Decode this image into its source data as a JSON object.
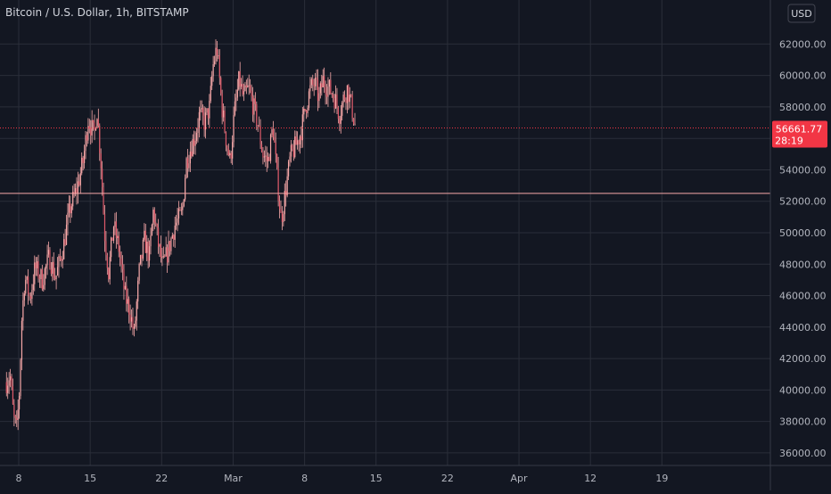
{
  "header": {
    "title": "Bitcoin / U.S. Dollar, 1h, BITSTAMP"
  },
  "currency_badge": "USD",
  "price_badge": {
    "price": "56661.77",
    "countdown": "28:19"
  },
  "colors": {
    "background": "#131722",
    "grid": "#2a2e39",
    "candles": "#f7a8a8",
    "current_price": "#f23645",
    "support_line": "#f7a8a8",
    "axis_text": "#b2b5be"
  },
  "chart_data": {
    "type": "candlestick",
    "title": "Bitcoin / U.S. Dollar, 1h, BITSTAMP",
    "x_ticks": [
      "8",
      "15",
      "22",
      "Mar",
      "8",
      "15",
      "22",
      "Apr",
      "12",
      "19"
    ],
    "y_ticks": [
      "36000.00",
      "38000.00",
      "40000.00",
      "42000.00",
      "44000.00",
      "46000.00",
      "48000.00",
      "50000.00",
      "52000.00",
      "54000.00",
      "56000.00",
      "58000.00",
      "60000.00",
      "62000.00"
    ],
    "ylim": [
      35200,
      64800
    ],
    "grid": true,
    "current_price": 56661.77,
    "horizontal_line": 52500,
    "price_path": [
      [
        0,
        40500
      ],
      [
        0.35,
        41000
      ],
      [
        0.7,
        38200
      ],
      [
        1.0,
        37500
      ],
      [
        1.25,
        39800
      ],
      [
        1.5,
        44500
      ],
      [
        1.8,
        47200
      ],
      [
        2.3,
        45800
      ],
      [
        2.8,
        47800
      ],
      [
        3.5,
        47000
      ],
      [
        4.2,
        48500
      ],
      [
        4.8,
        47100
      ],
      [
        5.6,
        49200
      ],
      [
        6.2,
        51500
      ],
      [
        6.9,
        52800
      ],
      [
        7.5,
        54500
      ],
      [
        8.0,
        57200
      ],
      [
        8.6,
        56200
      ],
      [
        8.85,
        58000
      ],
      [
        9.3,
        54000
      ],
      [
        9.6,
        50000
      ],
      [
        10.0,
        47500
      ],
      [
        10.5,
        50500
      ],
      [
        11.0,
        49000
      ],
      [
        11.6,
        46000
      ],
      [
        12.1,
        45000
      ],
      [
        12.5,
        43500
      ],
      [
        13.0,
        47500
      ],
      [
        13.5,
        49500
      ],
      [
        14.0,
        48500
      ],
      [
        14.4,
        51500
      ],
      [
        14.8,
        49500
      ],
      [
        15.3,
        47800
      ],
      [
        15.9,
        49000
      ],
      [
        16.5,
        50500
      ],
      [
        17.2,
        51200
      ],
      [
        17.6,
        54500
      ],
      [
        18.1,
        55500
      ],
      [
        18.5,
        56200
      ],
      [
        18.9,
        57500
      ],
      [
        19.4,
        57000
      ],
      [
        19.9,
        58000
      ],
      [
        20.2,
        60500
      ],
      [
        20.6,
        61800
      ],
      [
        21.1,
        58000
      ],
      [
        21.5,
        56000
      ],
      [
        21.9,
        54500
      ],
      [
        22.3,
        57500
      ],
      [
        22.8,
        59800
      ],
      [
        23.2,
        58500
      ],
      [
        23.7,
        59200
      ],
      [
        24.2,
        58000
      ],
      [
        24.6,
        57000
      ],
      [
        25.1,
        55000
      ],
      [
        25.6,
        54500
      ],
      [
        26.1,
        56800
      ],
      [
        26.5,
        53500
      ],
      [
        26.9,
        50800
      ],
      [
        27.3,
        52500
      ],
      [
        27.8,
        54800
      ],
      [
        28.3,
        55500
      ],
      [
        28.8,
        56300
      ],
      [
        29.3,
        58000
      ],
      [
        29.8,
        59200
      ],
      [
        30.2,
        59500
      ],
      [
        30.6,
        58500
      ],
      [
        31.0,
        59700
      ],
      [
        31.4,
        59300
      ],
      [
        31.8,
        59000
      ],
      [
        32.2,
        58500
      ],
      [
        32.6,
        57500
      ],
      [
        33.0,
        58500
      ],
      [
        33.4,
        59200
      ],
      [
        33.8,
        58000
      ],
      [
        34.1,
        57000
      ],
      [
        34.2,
        56661.77
      ]
    ]
  }
}
